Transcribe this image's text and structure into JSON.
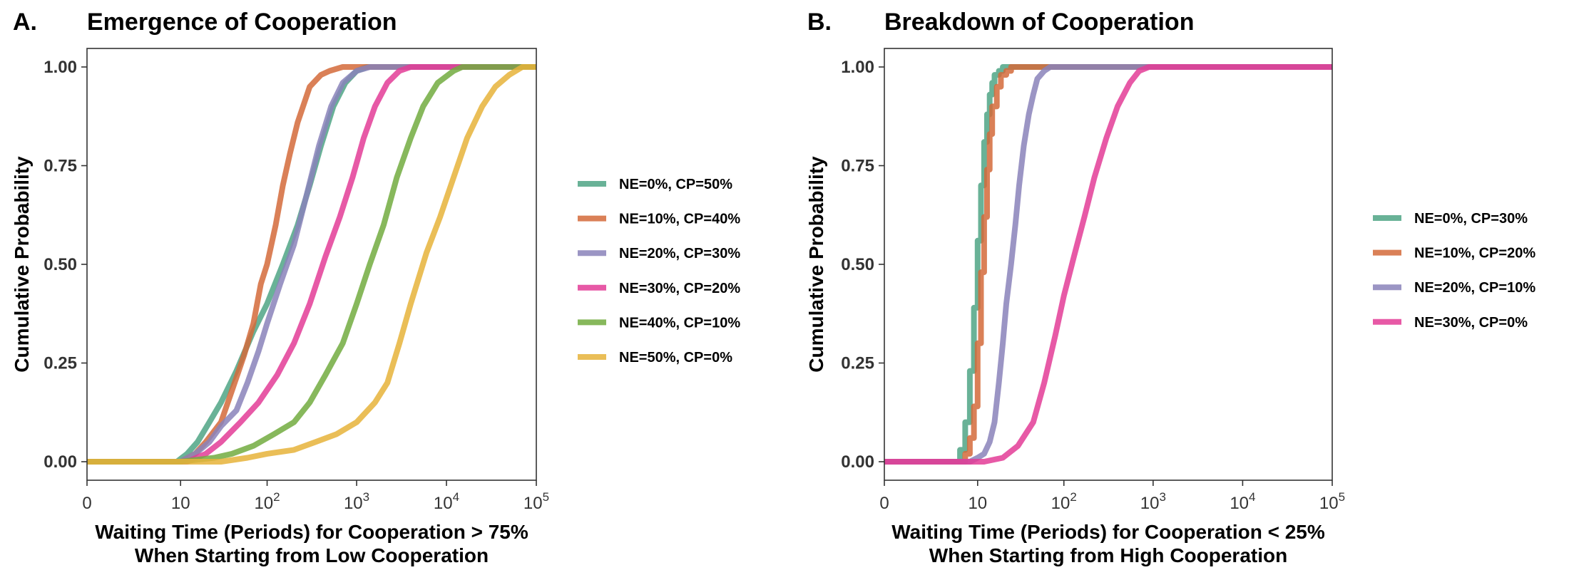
{
  "chart_data": [
    {
      "type": "line",
      "panel_letter": "A.",
      "title": "Emergence of Cooperation",
      "xlabel_lines": [
        "Waiting Time (Periods) for Cooperation > 75%",
        "When Starting from Low Cooperation"
      ],
      "ylabel": "Cumulative Probability",
      "x_scale": "log10(1+x)",
      "xlim": [
        0,
        100000
      ],
      "ylim": [
        0,
        1
      ],
      "x_ticks": [
        {
          "value": 0,
          "base": "0",
          "exp": ""
        },
        {
          "value": 10,
          "base": "10",
          "exp": ""
        },
        {
          "value": 100,
          "base": "10",
          "exp": "2"
        },
        {
          "value": 1000,
          "base": "10",
          "exp": "3"
        },
        {
          "value": 10000,
          "base": "10",
          "exp": "4"
        },
        {
          "value": 100000,
          "base": "10",
          "exp": "5"
        }
      ],
      "y_ticks": [
        {
          "value": 0,
          "label": "0.00"
        },
        {
          "value": 0.25,
          "label": "0.25"
        },
        {
          "value": 0.5,
          "label": "0.50"
        },
        {
          "value": 0.75,
          "label": "0.75"
        },
        {
          "value": 1,
          "label": "1.00"
        }
      ],
      "grid": false,
      "legend_position": "right",
      "series": [
        {
          "name": "NE=0%, CP=50%",
          "color": "#4FA585",
          "points": [
            [
              0,
              0
            ],
            [
              9,
              0
            ],
            [
              12,
              0.02
            ],
            [
              16,
              0.05
            ],
            [
              22,
              0.1
            ],
            [
              30,
              0.15
            ],
            [
              45,
              0.23
            ],
            [
              70,
              0.33
            ],
            [
              100,
              0.4
            ],
            [
              150,
              0.5
            ],
            [
              220,
              0.6
            ],
            [
              300,
              0.7
            ],
            [
              400,
              0.8
            ],
            [
              550,
              0.9
            ],
            [
              750,
              0.96
            ],
            [
              1000,
              0.99
            ],
            [
              1300,
              1
            ],
            [
              100000,
              1
            ]
          ]
        },
        {
          "name": "NE=10%, CP=40%",
          "color": "#D46A3A",
          "points": [
            [
              0,
              0
            ],
            [
              10,
              0
            ],
            [
              15,
              0.02
            ],
            [
              20,
              0.05
            ],
            [
              30,
              0.1
            ],
            [
              40,
              0.18
            ],
            [
              55,
              0.27
            ],
            [
              70,
              0.35
            ],
            [
              85,
              0.45
            ],
            [
              100,
              0.5
            ],
            [
              125,
              0.6
            ],
            [
              150,
              0.7
            ],
            [
              180,
              0.78
            ],
            [
              220,
              0.86
            ],
            [
              300,
              0.95
            ],
            [
              400,
              0.98
            ],
            [
              500,
              0.99
            ],
            [
              700,
              1
            ],
            [
              100000,
              1
            ]
          ]
        },
        {
          "name": "NE=20%, CP=30%",
          "color": "#8A82BA",
          "points": [
            [
              0,
              0
            ],
            [
              10,
              0
            ],
            [
              15,
              0.02
            ],
            [
              22,
              0.05
            ],
            [
              30,
              0.09
            ],
            [
              45,
              0.13
            ],
            [
              60,
              0.2
            ],
            [
              80,
              0.28
            ],
            [
              100,
              0.35
            ],
            [
              140,
              0.45
            ],
            [
              200,
              0.55
            ],
            [
              280,
              0.68
            ],
            [
              380,
              0.8
            ],
            [
              520,
              0.9
            ],
            [
              700,
              0.96
            ],
            [
              1000,
              0.99
            ],
            [
              1400,
              1
            ],
            [
              100000,
              1
            ]
          ]
        },
        {
          "name": "NE=30%, CP=20%",
          "color": "#E33C96",
          "points": [
            [
              0,
              0
            ],
            [
              12,
              0
            ],
            [
              20,
              0.02
            ],
            [
              30,
              0.05
            ],
            [
              50,
              0.1
            ],
            [
              80,
              0.15
            ],
            [
              130,
              0.22
            ],
            [
              200,
              0.3
            ],
            [
              300,
              0.4
            ],
            [
              450,
              0.52
            ],
            [
              650,
              0.62
            ],
            [
              900,
              0.72
            ],
            [
              1200,
              0.82
            ],
            [
              1600,
              0.9
            ],
            [
              2200,
              0.96
            ],
            [
              3000,
              0.99
            ],
            [
              4000,
              1
            ],
            [
              100000,
              1
            ]
          ]
        },
        {
          "name": "NE=40%, CP=10%",
          "color": "#72AC3F",
          "points": [
            [
              0,
              0
            ],
            [
              10,
              0
            ],
            [
              25,
              0.01
            ],
            [
              40,
              0.02
            ],
            [
              70,
              0.04
            ],
            [
              120,
              0.07
            ],
            [
              200,
              0.1
            ],
            [
              300,
              0.15
            ],
            [
              450,
              0.22
            ],
            [
              700,
              0.3
            ],
            [
              1000,
              0.4
            ],
            [
              1400,
              0.5
            ],
            [
              2000,
              0.6
            ],
            [
              2800,
              0.72
            ],
            [
              4000,
              0.82
            ],
            [
              5500,
              0.9
            ],
            [
              8000,
              0.96
            ],
            [
              12000,
              0.99
            ],
            [
              15000,
              1
            ],
            [
              100000,
              1
            ]
          ]
        },
        {
          "name": "NE=50%, CP=0%",
          "color": "#E6B33A",
          "points": [
            [
              0,
              0
            ],
            [
              30,
              0
            ],
            [
              60,
              0.01
            ],
            [
              100,
              0.02
            ],
            [
              200,
              0.03
            ],
            [
              350,
              0.05
            ],
            [
              600,
              0.07
            ],
            [
              1000,
              0.1
            ],
            [
              1600,
              0.15
            ],
            [
              2200,
              0.2
            ],
            [
              3000,
              0.3
            ],
            [
              4000,
              0.4
            ],
            [
              6000,
              0.53
            ],
            [
              8500,
              0.62
            ],
            [
              12000,
              0.72
            ],
            [
              17000,
              0.82
            ],
            [
              25000,
              0.9
            ],
            [
              35000,
              0.95
            ],
            [
              50000,
              0.98
            ],
            [
              70000,
              1
            ],
            [
              100000,
              1
            ]
          ]
        }
      ]
    },
    {
      "type": "line",
      "panel_letter": "B.",
      "title": "Breakdown of Cooperation",
      "xlabel_lines": [
        "Waiting Time (Periods) for Cooperation < 25%",
        "When Starting from High Cooperation"
      ],
      "ylabel": "Cumulative Probability",
      "x_scale": "log10(1+x)",
      "xlim": [
        0,
        100000
      ],
      "ylim": [
        0,
        1
      ],
      "x_ticks": [
        {
          "value": 0,
          "base": "0",
          "exp": ""
        },
        {
          "value": 10,
          "base": "10",
          "exp": ""
        },
        {
          "value": 100,
          "base": "10",
          "exp": "2"
        },
        {
          "value": 1000,
          "base": "10",
          "exp": "3"
        },
        {
          "value": 10000,
          "base": "10",
          "exp": "4"
        },
        {
          "value": 100000,
          "base": "10",
          "exp": "5"
        }
      ],
      "y_ticks": [
        {
          "value": 0,
          "label": "0.00"
        },
        {
          "value": 0.25,
          "label": "0.25"
        },
        {
          "value": 0.5,
          "label": "0.50"
        },
        {
          "value": 0.75,
          "label": "0.75"
        },
        {
          "value": 1,
          "label": "1.00"
        }
      ],
      "grid": false,
      "legend_position": "right",
      "series": [
        {
          "name": "NE=0%, CP=30%",
          "color": "#4FA585",
          "points": [
            [
              0,
              0
            ],
            [
              6,
              0
            ],
            [
              6,
              0.03
            ],
            [
              7,
              0.03
            ],
            [
              7,
              0.1
            ],
            [
              8,
              0.1
            ],
            [
              8,
              0.23
            ],
            [
              9,
              0.23
            ],
            [
              9,
              0.39
            ],
            [
              10,
              0.39
            ],
            [
              10,
              0.56
            ],
            [
              11,
              0.56
            ],
            [
              11,
              0.7
            ],
            [
              12,
              0.7
            ],
            [
              12,
              0.81
            ],
            [
              13,
              0.81
            ],
            [
              13,
              0.88
            ],
            [
              14,
              0.88
            ],
            [
              14,
              0.93
            ],
            [
              15,
              0.93
            ],
            [
              15,
              0.96
            ],
            [
              16,
              0.96
            ],
            [
              16,
              0.98
            ],
            [
              18,
              0.98
            ],
            [
              18,
              0.99
            ],
            [
              20,
              0.99
            ],
            [
              20,
              1
            ],
            [
              100000,
              1
            ]
          ]
        },
        {
          "name": "NE=10%, CP=20%",
          "color": "#D46A3A",
          "points": [
            [
              0,
              0
            ],
            [
              7,
              0
            ],
            [
              7,
              0.02
            ],
            [
              8,
              0.02
            ],
            [
              8,
              0.06
            ],
            [
              9,
              0.06
            ],
            [
              9,
              0.14
            ],
            [
              10,
              0.14
            ],
            [
              10,
              0.3
            ],
            [
              11,
              0.3
            ],
            [
              11,
              0.48
            ],
            [
              12,
              0.48
            ],
            [
              12,
              0.62
            ],
            [
              13,
              0.62
            ],
            [
              13,
              0.74
            ],
            [
              14,
              0.74
            ],
            [
              14,
              0.83
            ],
            [
              15,
              0.83
            ],
            [
              15,
              0.9
            ],
            [
              17,
              0.9
            ],
            [
              17,
              0.95
            ],
            [
              19,
              0.95
            ],
            [
              19,
              0.98
            ],
            [
              22,
              0.98
            ],
            [
              22,
              0.99
            ],
            [
              25,
              0.99
            ],
            [
              25,
              1
            ],
            [
              100000,
              1
            ]
          ]
        },
        {
          "name": "NE=20%, CP=10%",
          "color": "#8A82BA",
          "points": [
            [
              0,
              0
            ],
            [
              8,
              0
            ],
            [
              10,
              0.01
            ],
            [
              12,
              0.02
            ],
            [
              14,
              0.05
            ],
            [
              16,
              0.1
            ],
            [
              18,
              0.2
            ],
            [
              20,
              0.3
            ],
            [
              22,
              0.4
            ],
            [
              25,
              0.5
            ],
            [
              28,
              0.6
            ],
            [
              31,
              0.7
            ],
            [
              35,
              0.8
            ],
            [
              40,
              0.88
            ],
            [
              45,
              0.93
            ],
            [
              50,
              0.97
            ],
            [
              60,
              0.99
            ],
            [
              70,
              1
            ],
            [
              100000,
              1
            ]
          ]
        },
        {
          "name": "NE=30%, CP=0%",
          "color": "#E33C96",
          "points": [
            [
              0,
              0
            ],
            [
              12,
              0
            ],
            [
              20,
              0.01
            ],
            [
              30,
              0.04
            ],
            [
              45,
              0.1
            ],
            [
              60,
              0.2
            ],
            [
              80,
              0.32
            ],
            [
              100,
              0.42
            ],
            [
              130,
              0.52
            ],
            [
              170,
              0.62
            ],
            [
              220,
              0.72
            ],
            [
              300,
              0.82
            ],
            [
              400,
              0.9
            ],
            [
              550,
              0.96
            ],
            [
              700,
              0.99
            ],
            [
              900,
              1
            ],
            [
              100000,
              1
            ]
          ]
        }
      ]
    }
  ]
}
